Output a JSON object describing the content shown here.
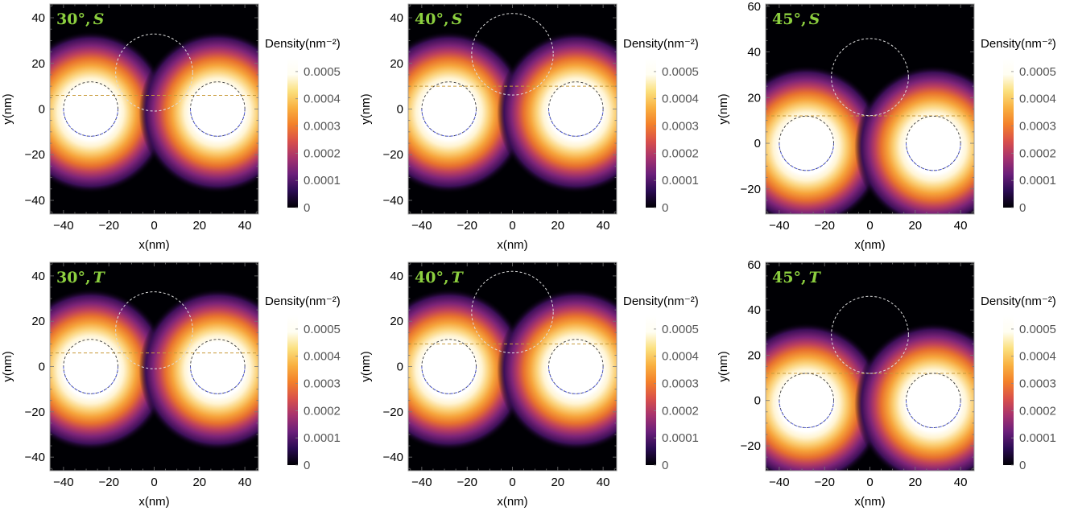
{
  "colors": {
    "panel_label": "#8ccf3f",
    "frame": "#a0a0a0",
    "circle_dot": "#5560e0",
    "circle_top": "#dddddd",
    "divider_line": "#c89a3a",
    "colormap": [
      "#000004",
      "#2a0b52",
      "#6a1f7a",
      "#a6326e",
      "#d9504a",
      "#f3802a",
      "#f9b040",
      "#fbe07e",
      "#fffef2",
      "#ffffff"
    ]
  },
  "chart_data": [
    {
      "type": "heatmap",
      "label": "30°, S",
      "label_angle": "30°",
      "label_state": "S",
      "xlabel": "x(nm)",
      "ylabel": "y(nm)",
      "xlim": [
        -46,
        46
      ],
      "ylim": [
        -46,
        46
      ],
      "xticks": [
        -40,
        -20,
        0,
        20,
        40
      ],
      "yticks": [
        -40,
        -20,
        0,
        20,
        40
      ],
      "xtick_labels": [
        "−40",
        "−20",
        "0",
        "20",
        "40"
      ],
      "ytick_labels": [
        "−40",
        "−20",
        "0",
        "20",
        "40"
      ],
      "dots": [
        {
          "cx": -28,
          "cy": 0,
          "r": 12
        },
        {
          "cx": 28,
          "cy": 0,
          "r": 12
        }
      ],
      "top_circle": {
        "cx": 0,
        "cy": 16,
        "r": 17
      },
      "divider_y": 6,
      "colorbar": {
        "title": "Density(nm⁻²)",
        "ticks": [
          0,
          0.0001,
          0.0002,
          0.0003,
          0.0004,
          0.0005
        ],
        "tick_labels": [
          "0",
          "0.0001",
          "0.0002",
          "0.0003",
          "0.0004",
          "0.0005"
        ],
        "range": [
          0,
          0.00055
        ]
      }
    },
    {
      "type": "heatmap",
      "label": "40°, S",
      "label_angle": "40°",
      "label_state": "S",
      "xlabel": "x(nm)",
      "ylabel": "y(nm)",
      "xlim": [
        -46,
        46
      ],
      "ylim": [
        -46,
        46
      ],
      "xticks": [
        -40,
        -20,
        0,
        20,
        40
      ],
      "yticks": [
        -40,
        -20,
        0,
        20,
        40
      ],
      "xtick_labels": [
        "−40",
        "−20",
        "0",
        "20",
        "40"
      ],
      "ytick_labels": [
        "−40",
        "−20",
        "0",
        "20",
        "40"
      ],
      "dots": [
        {
          "cx": -28,
          "cy": 0,
          "r": 12
        },
        {
          "cx": 28,
          "cy": 0,
          "r": 12
        }
      ],
      "top_circle": {
        "cx": 0,
        "cy": 24,
        "r": 18
      },
      "divider_y": 10,
      "colorbar": {
        "title": "Density(nm⁻²)",
        "ticks": [
          0,
          0.0001,
          0.0002,
          0.0003,
          0.0004,
          0.0005
        ],
        "tick_labels": [
          "0",
          "0.0001",
          "0.0002",
          "0.0003",
          "0.0004",
          "0.0005"
        ],
        "range": [
          0,
          0.00055
        ]
      }
    },
    {
      "type": "heatmap",
      "label": "45°, S",
      "label_angle": "45°",
      "label_state": "S",
      "xlabel": "x(nm)",
      "ylabel": "y(nm)",
      "xlim": [
        -46,
        46
      ],
      "ylim": [
        -31,
        61
      ],
      "xticks": [
        -40,
        -20,
        0,
        20,
        40
      ],
      "yticks": [
        -20,
        0,
        20,
        40,
        60
      ],
      "xtick_labels": [
        "−40",
        "−20",
        "0",
        "20",
        "40"
      ],
      "ytick_labels": [
        "−20",
        "0",
        "20",
        "40",
        "60"
      ],
      "dots": [
        {
          "cx": -28,
          "cy": 0,
          "r": 12
        },
        {
          "cx": 28,
          "cy": 0,
          "r": 12
        }
      ],
      "top_circle": {
        "cx": 0,
        "cy": 29,
        "r": 17
      },
      "divider_y": 12,
      "colorbar": {
        "title": "Density(nm⁻²)",
        "ticks": [
          0,
          0.0001,
          0.0002,
          0.0003,
          0.0004,
          0.0005
        ],
        "tick_labels": [
          "0",
          "0.0001",
          "0.0002",
          "0.0003",
          "0.0004",
          "0.0005"
        ],
        "range": [
          0,
          0.00055
        ]
      }
    },
    {
      "type": "heatmap",
      "label": "30°, T",
      "label_angle": "30°",
      "label_state": "T",
      "xlabel": "x(nm)",
      "ylabel": "y(nm)",
      "xlim": [
        -46,
        46
      ],
      "ylim": [
        -46,
        46
      ],
      "xticks": [
        -40,
        -20,
        0,
        20,
        40
      ],
      "yticks": [
        -40,
        -20,
        0,
        20,
        40
      ],
      "xtick_labels": [
        "−40",
        "−20",
        "0",
        "20",
        "40"
      ],
      "ytick_labels": [
        "−40",
        "−20",
        "0",
        "20",
        "40"
      ],
      "dots": [
        {
          "cx": -28,
          "cy": 0,
          "r": 12
        },
        {
          "cx": 28,
          "cy": 0,
          "r": 12
        }
      ],
      "top_circle": {
        "cx": 0,
        "cy": 16,
        "r": 17
      },
      "divider_y": 6,
      "colorbar": {
        "title": "Density(nm⁻²)",
        "ticks": [
          0,
          0.0001,
          0.0002,
          0.0003,
          0.0004,
          0.0005
        ],
        "tick_labels": [
          "0",
          "0.0001",
          "0.0002",
          "0.0003",
          "0.0004",
          "0.0005"
        ],
        "range": [
          0,
          0.00055
        ]
      }
    },
    {
      "type": "heatmap",
      "label": "40°, T",
      "label_angle": "40°",
      "label_state": "T",
      "xlabel": "x(nm)",
      "ylabel": "y(nm)",
      "xlim": [
        -46,
        46
      ],
      "ylim": [
        -46,
        46
      ],
      "xticks": [
        -40,
        -20,
        0,
        20,
        40
      ],
      "yticks": [
        -40,
        -20,
        0,
        20,
        40
      ],
      "xtick_labels": [
        "−40",
        "−20",
        "0",
        "20",
        "40"
      ],
      "ytick_labels": [
        "−40",
        "−20",
        "0",
        "20",
        "40"
      ],
      "dots": [
        {
          "cx": -28,
          "cy": 0,
          "r": 12
        },
        {
          "cx": 28,
          "cy": 0,
          "r": 12
        }
      ],
      "top_circle": {
        "cx": 0,
        "cy": 24,
        "r": 18
      },
      "divider_y": 10,
      "colorbar": {
        "title": "Density(nm⁻²)",
        "ticks": [
          0,
          0.0001,
          0.0002,
          0.0003,
          0.0004,
          0.0005
        ],
        "tick_labels": [
          "0",
          "0.0001",
          "0.0002",
          "0.0003",
          "0.0004",
          "0.0005"
        ],
        "range": [
          0,
          0.00055
        ]
      }
    },
    {
      "type": "heatmap",
      "label": "45°, T",
      "label_angle": "45°",
      "label_state": "T",
      "xlabel": "x(nm)",
      "ylabel": "y(nm)",
      "xlim": [
        -46,
        46
      ],
      "ylim": [
        -31,
        61
      ],
      "xticks": [
        -40,
        -20,
        0,
        20,
        40
      ],
      "yticks": [
        -20,
        0,
        20,
        40,
        60
      ],
      "xtick_labels": [
        "−40",
        "−20",
        "0",
        "20",
        "40"
      ],
      "ytick_labels": [
        "−20",
        "0",
        "20",
        "40",
        "60"
      ],
      "dots": [
        {
          "cx": -28,
          "cy": 0,
          "r": 12
        },
        {
          "cx": 28,
          "cy": 0,
          "r": 12
        }
      ],
      "top_circle": {
        "cx": 0,
        "cy": 29,
        "r": 17
      },
      "divider_y": 12,
      "colorbar": {
        "title": "Density(nm⁻²)",
        "ticks": [
          0,
          0.0001,
          0.0002,
          0.0003,
          0.0004,
          0.0005
        ],
        "tick_labels": [
          "0",
          "0.0001",
          "0.0002",
          "0.0003",
          "0.0004",
          "0.0005"
        ],
        "range": [
          0,
          0.00055
        ]
      }
    }
  ]
}
